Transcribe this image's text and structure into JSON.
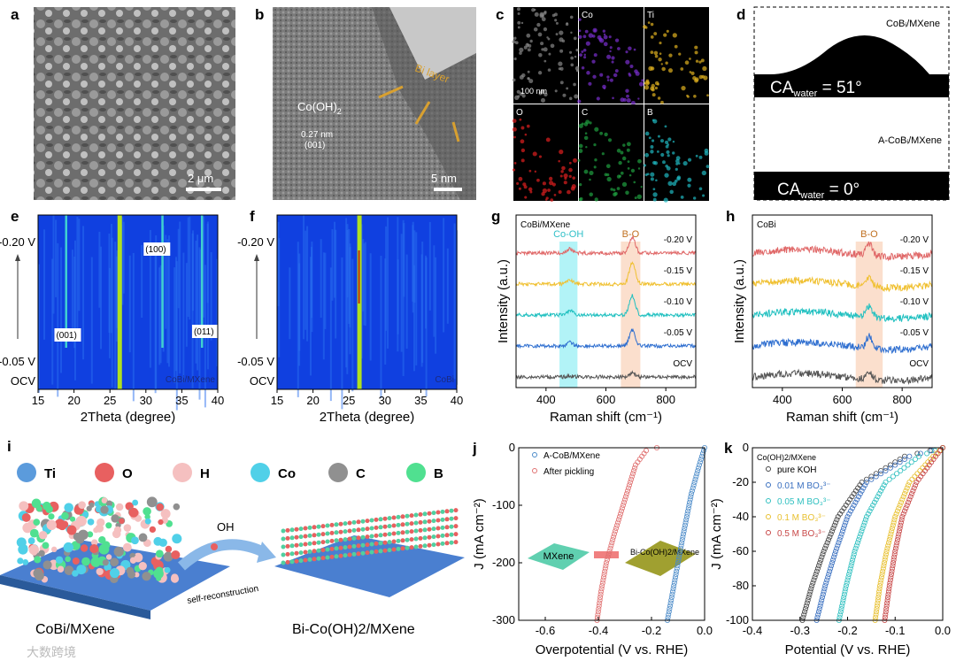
{
  "panels": {
    "a": "a",
    "b": "b",
    "c": "c",
    "d": "d",
    "e": "e",
    "f": "f",
    "g": "g",
    "h": "h",
    "i": "i",
    "j": "j",
    "k": "k"
  },
  "a": {
    "scale": "2 μm"
  },
  "b": {
    "phase": "Co(OH)",
    "phase_sub": "2",
    "dspacing": "0.27 nm",
    "plane": "(001)",
    "annotation": "Bi layer",
    "scale": "5 nm"
  },
  "c": {
    "maps": [
      "",
      "Co",
      "Ti",
      "O",
      "C",
      "B"
    ],
    "colors": [
      "#888888",
      "#7a2fd0",
      "#e0b020",
      "#e02020",
      "#20a040",
      "#20b8c0"
    ],
    "scale": "100 nm"
  },
  "d": {
    "top_label": "CoBᵢ/MXene",
    "top_ca": "CA",
    "top_ca_sub": "water",
    "top_ca_val": " = 51°",
    "bottom_label": "A-CoBᵢ/MXene",
    "bottom_ca": "CA",
    "bottom_ca_sub": "water",
    "bottom_ca_val": " = 0°"
  },
  "watermark": "大数跨境",
  "i": {
    "legend": [
      {
        "el": "Ti",
        "color": "#5b9bdc"
      },
      {
        "el": "O",
        "color": "#e86060"
      },
      {
        "el": "H",
        "color": "#f5c0c0"
      },
      {
        "el": "Co",
        "color": "#50d0e8"
      },
      {
        "el": "C",
        "color": "#909090"
      },
      {
        "el": "B",
        "color": "#50e090"
      }
    ],
    "oh": "OH",
    "arrow": "self-reconstruction",
    "left": "CoBi/MXene",
    "right": "Bi-Co(OH)2/MXene"
  },
  "chart_data": [
    {
      "id": "e",
      "type": "heatmap",
      "xlabel": "2Theta (degree)",
      "xlim": [
        15,
        40
      ],
      "xticks": [
        15,
        20,
        25,
        30,
        35,
        40
      ],
      "ylabels": [
        "-0.20 V",
        "-0.05 V",
        "OCV"
      ],
      "sample": "CoBi/MXene",
      "peaks": [
        {
          "x": 19,
          "label": "(001)",
          "strength": 0.5
        },
        {
          "x": 26.3,
          "label": "",
          "strength": 0.9
        },
        {
          "x": 32.4,
          "label": "(100)",
          "strength": 0.5
        },
        {
          "x": 37.9,
          "label": "(011)",
          "strength": 0.6
        }
      ]
    },
    {
      "id": "f",
      "type": "heatmap",
      "xlabel": "2Theta (degree)",
      "xlim": [
        15,
        40
      ],
      "xticks": [
        15,
        20,
        25,
        30,
        35,
        40
      ],
      "ylabels": [
        "-0.20 V",
        "-0.05 V",
        "OCV"
      ],
      "sample": "CoBi",
      "peaks": [
        {
          "x": 26.4,
          "label": "",
          "strength": 1.0
        }
      ]
    },
    {
      "id": "g",
      "type": "line",
      "title": "CoBi/MXene",
      "xlabel": "Raman shift (cm⁻¹)",
      "ylabel": "Intensity (a.u.)",
      "xlim": [
        300,
        900
      ],
      "xticks": [
        400,
        600,
        800
      ],
      "bands": [
        {
          "label": "Co-OH",
          "range": [
            445,
            505
          ],
          "color": "#9ff0f5",
          "text": "#30c0c8"
        },
        {
          "label": "B-O",
          "range": [
            650,
            715
          ],
          "color": "#fad7c0",
          "text": "#c07020"
        }
      ],
      "series": [
        {
          "name": "OCV",
          "color": "#555555",
          "peaks": [
            [
              480,
              0.1
            ],
            [
              688,
              0.5
            ]
          ]
        },
        {
          "name": "-0.05 V",
          "color": "#2f6fd0",
          "peaks": [
            [
              480,
              0.4
            ],
            [
              688,
              1.8
            ]
          ]
        },
        {
          "name": "-0.10 V",
          "color": "#20c0c0",
          "peaks": [
            [
              480,
              0.5
            ],
            [
              688,
              2.2
            ]
          ]
        },
        {
          "name": "-0.15 V",
          "color": "#f0c030",
          "peaks": [
            [
              480,
              0.5
            ],
            [
              688,
              2.4
            ]
          ]
        },
        {
          "name": "-0.20 V",
          "color": "#e06868",
          "peaks": [
            [
              480,
              0.5
            ],
            [
              688,
              1.8
            ]
          ]
        }
      ]
    },
    {
      "id": "h",
      "type": "line",
      "title": "CoBi",
      "xlabel": "Raman shift (cm⁻¹)",
      "ylabel": "Intensity (a.u.)",
      "xlim": [
        300,
        900
      ],
      "xticks": [
        400,
        600,
        800
      ],
      "bands": [
        {
          "label": "B-O",
          "range": [
            645,
            735
          ],
          "color": "#fad7c0",
          "text": "#c07020"
        }
      ],
      "series": [
        {
          "name": "OCV",
          "color": "#555555",
          "peaks": [
            [
              690,
              0.8
            ]
          ]
        },
        {
          "name": "-0.05 V",
          "color": "#2f6fd0",
          "peaks": [
            [
              690,
              1.4
            ]
          ]
        },
        {
          "name": "-0.10 V",
          "color": "#20c0c0",
          "peaks": [
            [
              690,
              1.3
            ]
          ]
        },
        {
          "name": "-0.15 V",
          "color": "#f0c030",
          "peaks": [
            [
              690,
              1.0
            ]
          ]
        },
        {
          "name": "-0.20 V",
          "color": "#e06868",
          "peaks": [
            [
              690,
              1.3
            ]
          ]
        }
      ]
    },
    {
      "id": "j",
      "type": "scatter",
      "xlabel": "Overpotential (V vs. RHE)",
      "ylabel": "J (mA cm⁻²)",
      "xlim": [
        -0.7,
        0
      ],
      "ylim": [
        -300,
        0
      ],
      "xticks": [
        -0.6,
        -0.4,
        -0.2,
        0.0
      ],
      "yticks": [
        0,
        -100,
        -200,
        -300
      ],
      "inset": {
        "left": "MXene",
        "right": "Bi-Co(OH)2/MXene"
      },
      "series": [
        {
          "name": "A-CoB/MXene",
          "color": "#4a8ac8",
          "x": [
            0,
            -0.02,
            -0.05,
            -0.08,
            -0.1,
            -0.12,
            -0.14
          ],
          "y": [
            0,
            -30,
            -80,
            -150,
            -200,
            -250,
            -300
          ]
        },
        {
          "name": "After pickling",
          "color": "#e07070",
          "x": [
            -0.18,
            -0.22,
            -0.26,
            -0.3,
            -0.34,
            -0.37,
            -0.39,
            -0.405
          ],
          "y": [
            0,
            -5,
            -30,
            -90,
            -150,
            -200,
            -250,
            -300
          ]
        }
      ]
    },
    {
      "id": "k",
      "type": "scatter",
      "title": "Co(OH)2/MXene",
      "xlabel": "Potential (V vs. RHE)",
      "ylabel": "J (mA cm⁻²)",
      "xlim": [
        -0.4,
        0
      ],
      "ylim": [
        -100,
        0
      ],
      "xticks": [
        -0.4,
        -0.3,
        -0.2,
        -0.1,
        0.0
      ],
      "yticks": [
        0,
        -20,
        -40,
        -60,
        -80,
        -100
      ],
      "series": [
        {
          "name": "pure KOH",
          "color": "#444444",
          "x": [
            0,
            -0.08,
            -0.17,
            -0.22,
            -0.25,
            -0.275,
            -0.295
          ],
          "y": [
            0,
            -5,
            -20,
            -40,
            -60,
            -80,
            -100
          ]
        },
        {
          "name": "0.01 M BO₃³⁻",
          "color": "#3a70c0",
          "x": [
            0,
            -0.07,
            -0.16,
            -0.2,
            -0.225,
            -0.247,
            -0.265
          ],
          "y": [
            0,
            -5,
            -20,
            -40,
            -60,
            -80,
            -100
          ]
        },
        {
          "name": "0.05 M BO₃³⁻",
          "color": "#30c0c0",
          "x": [
            0,
            -0.05,
            -0.12,
            -0.16,
            -0.185,
            -0.203,
            -0.218
          ],
          "y": [
            0,
            -5,
            -20,
            -40,
            -60,
            -80,
            -100
          ]
        },
        {
          "name": "0.1 M BO₃³⁻",
          "color": "#e8c030",
          "x": [
            0,
            -0.02,
            -0.07,
            -0.1,
            -0.118,
            -0.132,
            -0.142
          ],
          "y": [
            0,
            -5,
            -20,
            -40,
            -60,
            -80,
            -100
          ]
        },
        {
          "name": "0.5 M BO₃³⁻",
          "color": "#c84848",
          "x": [
            0,
            -0.015,
            -0.055,
            -0.085,
            -0.1,
            -0.112,
            -0.122
          ],
          "y": [
            0,
            -5,
            -20,
            -40,
            -60,
            -80,
            -100
          ]
        }
      ]
    }
  ]
}
